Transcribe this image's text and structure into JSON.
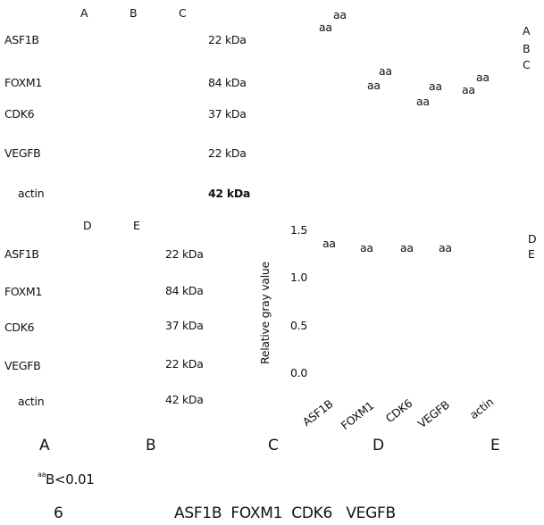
{
  "panel_top_left": {
    "lanes": [
      "A",
      "B",
      "C"
    ],
    "rows": [
      {
        "label": "ASF1B",
        "size": "22 kDa"
      },
      {
        "label": "FOXM1",
        "size": "84 kDa"
      },
      {
        "label": "CDK6",
        "size": "37 kDa"
      },
      {
        "label": "VEGFB",
        "size": "22 kDa"
      },
      {
        "label": "actin",
        "size": "42 kDa"
      }
    ]
  },
  "panel_top_right": {
    "marks": [
      "aa",
      "aa",
      "aa",
      "aa",
      "aa",
      "aa",
      "aa",
      "aa"
    ],
    "legend": [
      "A",
      "B",
      "C"
    ]
  },
  "panel_bottom_left": {
    "lanes": [
      "D",
      "E"
    ],
    "rows": [
      {
        "label": "ASF1B",
        "size": "22 kDa"
      },
      {
        "label": "FOXM1",
        "size": "84 kDa"
      },
      {
        "label": "CDK6",
        "size": "37 kDa"
      },
      {
        "label": "VEGFB",
        "size": "22 kDa"
      },
      {
        "label": "actin",
        "size": "42 kDa"
      }
    ]
  },
  "panel_bottom_right": {
    "y_label": "Relative gray value",
    "yticks": [
      "1.5",
      "1.0",
      "0.5",
      "0.0"
    ],
    "marks": [
      "aa",
      "aa",
      "aa",
      "aa"
    ],
    "categories": [
      "ASF1B",
      "FOXM1",
      "CDK6",
      "VEGFB",
      "actin"
    ],
    "legend": [
      "D",
      "E"
    ]
  },
  "caption": {
    "groups": [
      "A",
      "B",
      "C",
      "D",
      "E"
    ],
    "sig_mark": "aa",
    "sig_text": "B<0.01",
    "number": "6",
    "genes": "ASF1B  FOXM1  CDK6   VEGFB"
  }
}
